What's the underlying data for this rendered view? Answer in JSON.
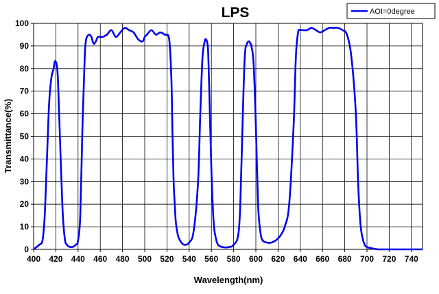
{
  "chart_data": {
    "type": "line",
    "title": "LPS",
    "xlabel": "Wavelength(nm)",
    "ylabel": "Transmittance(%)",
    "xlim": [
      400,
      750
    ],
    "ylim": [
      0,
      100
    ],
    "x_ticks": [
      400,
      420,
      440,
      460,
      480,
      500,
      520,
      540,
      560,
      580,
      600,
      620,
      640,
      660,
      680,
      700,
      720,
      740
    ],
    "y_ticks": [
      0,
      10,
      20,
      30,
      40,
      50,
      60,
      70,
      80,
      90,
      100
    ],
    "grid": true,
    "legend_position": "top-right",
    "series": [
      {
        "name": "AOI=0degree",
        "color": "#0000ee",
        "x": [
          400,
          405,
          408,
          410,
          412,
          414,
          416,
          418,
          419,
          420,
          421,
          422,
          424,
          426,
          428,
          430,
          434,
          438,
          440,
          442,
          444,
          446,
          447,
          448,
          450,
          452,
          454,
          456,
          458,
          462,
          466,
          470,
          474,
          478,
          482,
          486,
          490,
          494,
          498,
          500,
          502,
          506,
          510,
          514,
          518,
          522,
          524,
          525,
          526,
          527,
          528,
          530,
          533,
          536,
          540,
          544,
          548,
          550,
          552,
          554,
          555,
          556,
          557,
          558,
          560,
          562,
          564,
          566,
          570,
          576,
          580,
          584,
          586,
          588,
          590,
          592,
          594,
          595,
          596,
          598,
          600,
          602,
          604,
          606,
          610,
          614,
          618,
          622,
          626,
          630,
          634,
          636,
          638,
          640,
          642,
          646,
          650,
          654,
          658,
          662,
          666,
          670,
          674,
          678,
          682,
          686,
          690,
          692,
          694,
          696,
          698,
          700,
          704,
          710,
          720,
          730,
          740,
          750
        ],
        "y": [
          0,
          2,
          4,
          15,
          40,
          65,
          76,
          80,
          83,
          83,
          81,
          74,
          45,
          18,
          5,
          2,
          1,
          2,
          4,
          15,
          55,
          85,
          92,
          94,
          95,
          94,
          91,
          92,
          94,
          94,
          95,
          97,
          94,
          96,
          98,
          97,
          96,
          93,
          92,
          94,
          95,
          97,
          95,
          96,
          95,
          93,
          75,
          50,
          30,
          20,
          12,
          6,
          3,
          2,
          3,
          8,
          30,
          60,
          85,
          92,
          93,
          92,
          88,
          72,
          35,
          12,
          5,
          2,
          1,
          1,
          2,
          6,
          20,
          55,
          85,
          91,
          92,
          91,
          90,
          82,
          55,
          20,
          8,
          4,
          3,
          3,
          4,
          6,
          10,
          20,
          55,
          85,
          96,
          97,
          97,
          97,
          98,
          97,
          96,
          97,
          98,
          98,
          98,
          97,
          95,
          85,
          60,
          30,
          12,
          5,
          2,
          1,
          0.5,
          0,
          0,
          0,
          0,
          0
        ]
      }
    ]
  }
}
